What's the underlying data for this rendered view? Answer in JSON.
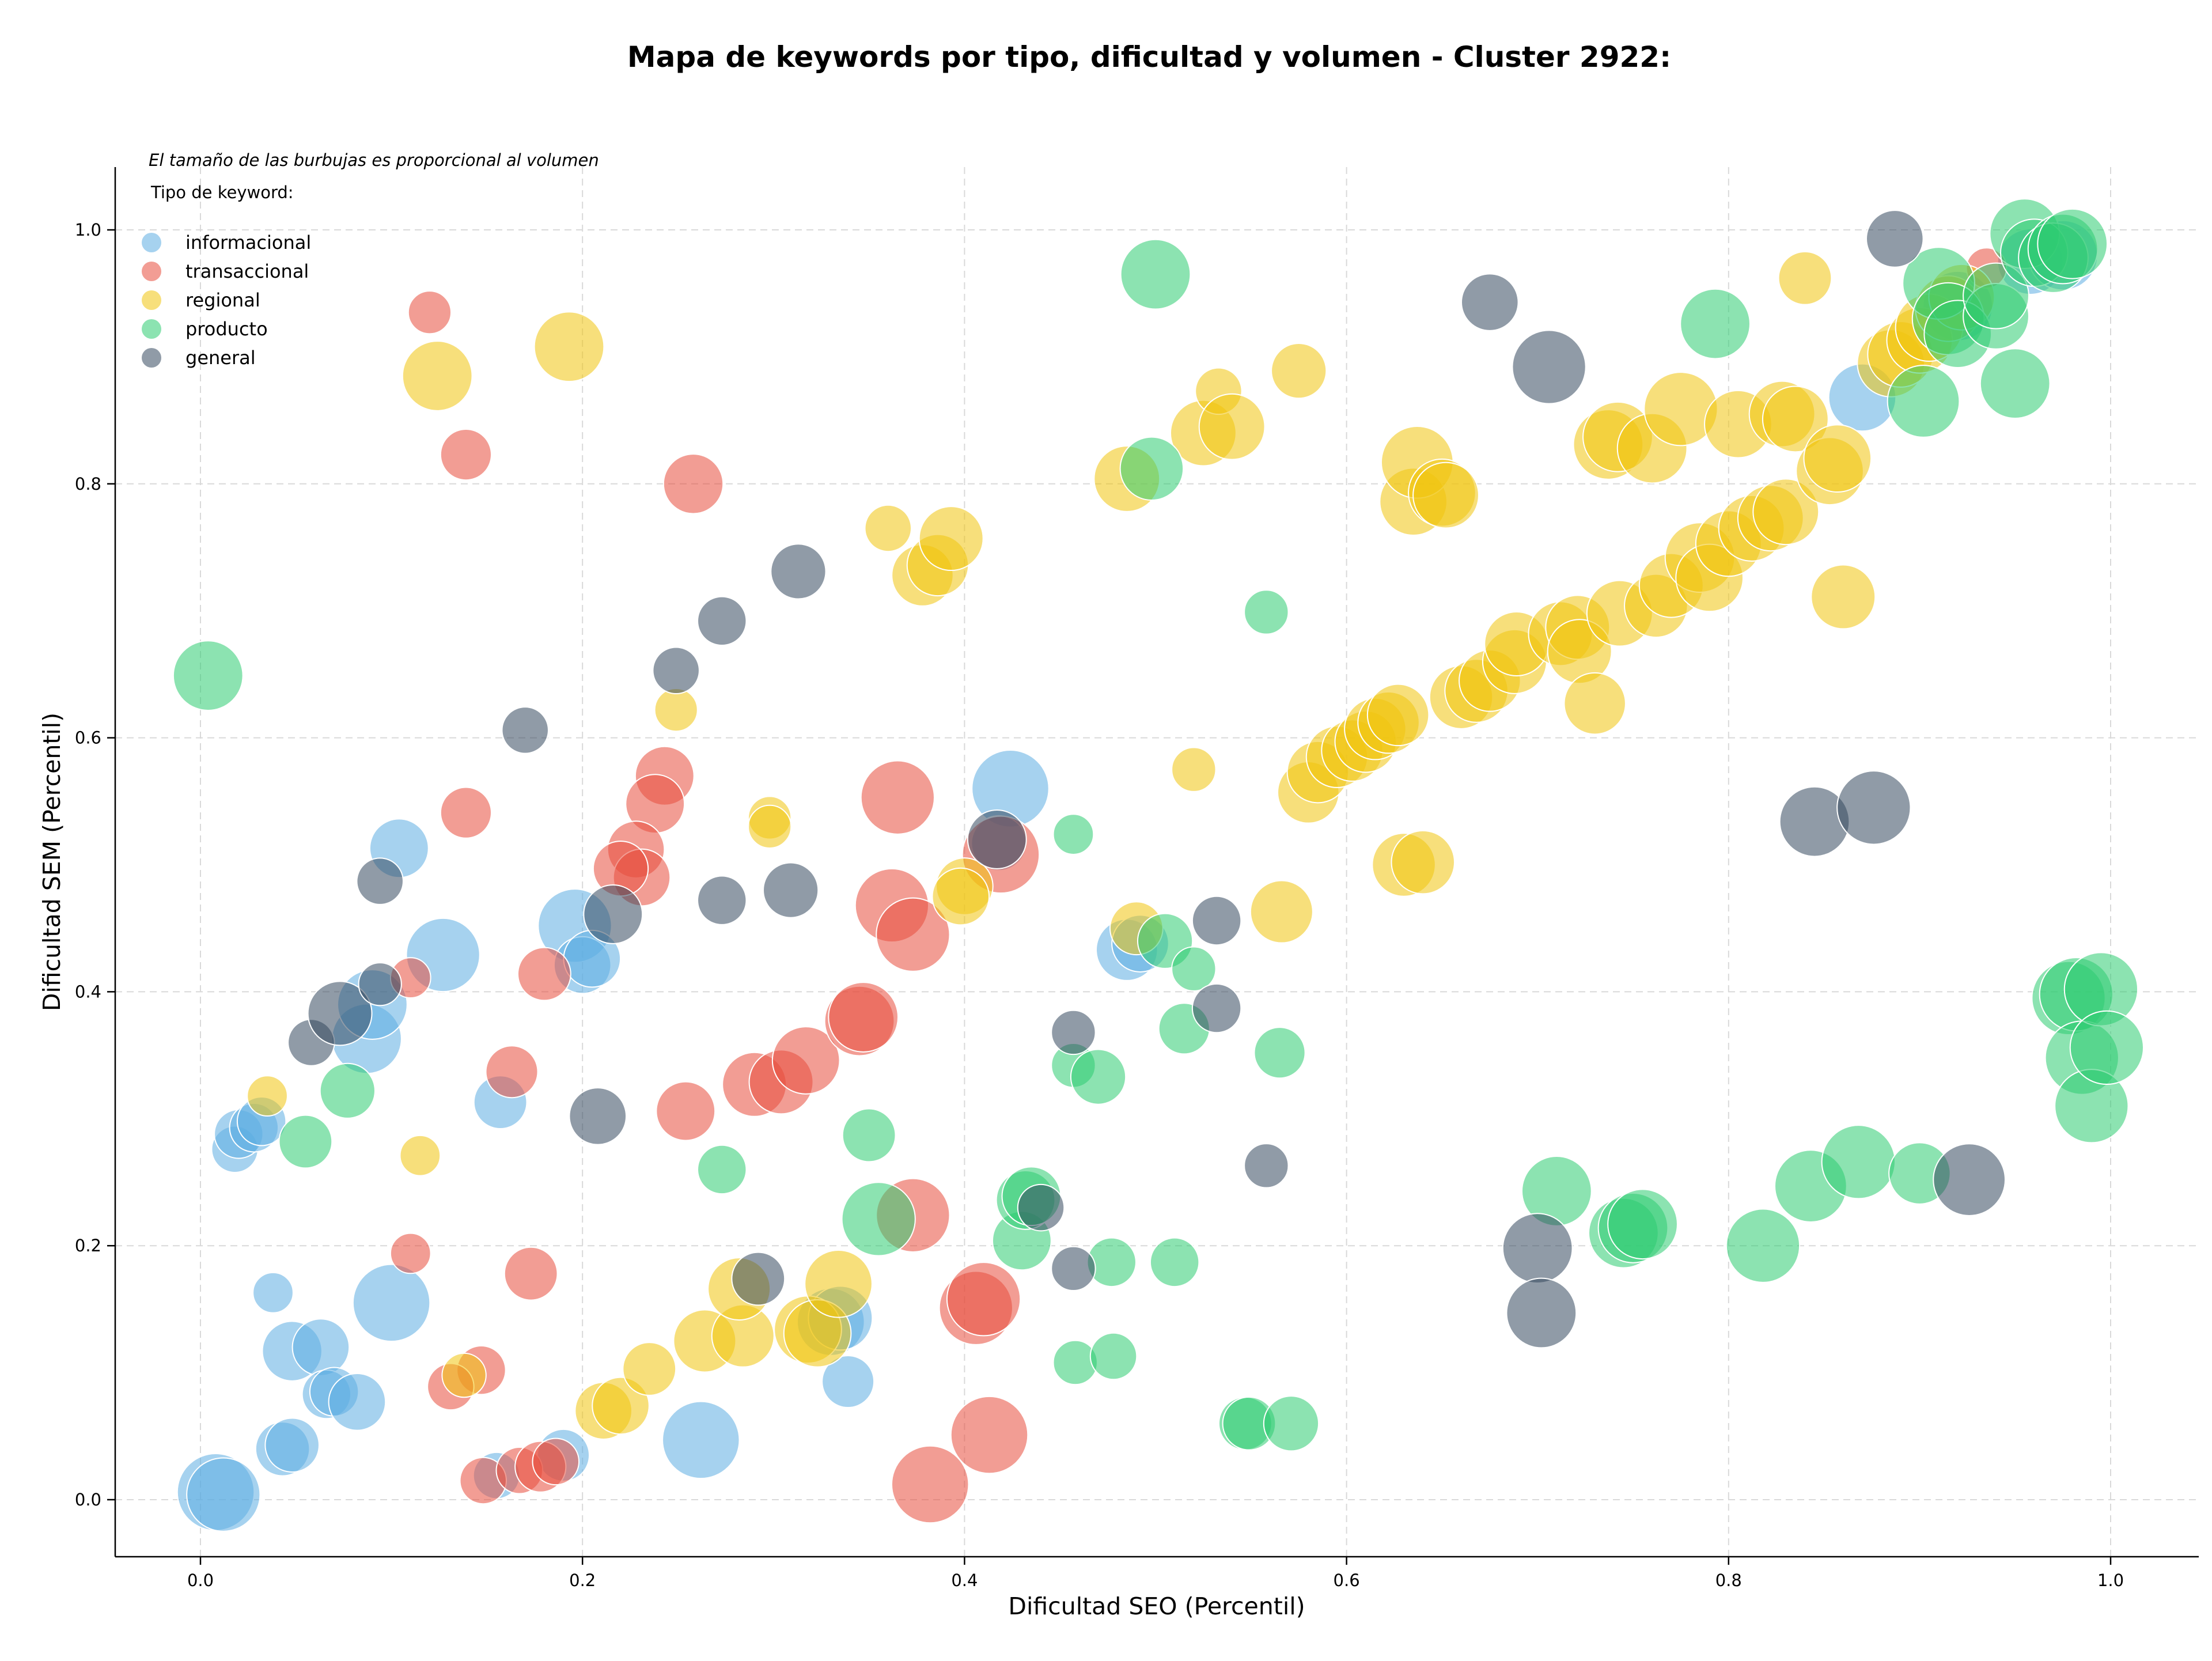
{
  "chart_data": {
    "type": "scatter",
    "title": "Mapa de keywords por tipo, dificultad y volumen - Cluster 2922:",
    "xlabel": "Dificultad SEO (Percentil)",
    "ylabel": "Dificultad SEM (Percentil)",
    "annotation": "El tamaño de las burbujas es proporcional al volumen",
    "legend_title": "Tipo de keyword:",
    "legend_position": "upper-left",
    "xlim": [
      -0.045,
      1.05
    ],
    "ylim": [
      -0.045,
      1.05
    ],
    "x_ticks": [
      "0.0",
      "0.2",
      "0.4",
      "0.6",
      "0.8",
      "1.0"
    ],
    "y_ticks": [
      "0.0",
      "0.2",
      "0.4",
      "0.6",
      "0.8",
      "1.0"
    ],
    "grid": true,
    "bubble_opacity": 0.55,
    "series": [
      {
        "name": "informacional",
        "color": "#5DADE2",
        "points": [
          [
            0.008,
            0.006,
            0.55
          ],
          [
            0.012,
            0.004,
            0.5
          ],
          [
            0.018,
            0.276,
            0.2
          ],
          [
            0.02,
            0.288,
            0.22
          ],
          [
            0.028,
            0.293,
            0.22
          ],
          [
            0.032,
            0.298,
            0.22
          ],
          [
            0.038,
            0.163,
            0.15
          ],
          [
            0.043,
            0.04,
            0.27
          ],
          [
            0.048,
            0.043,
            0.27
          ],
          [
            0.048,
            0.117,
            0.33
          ],
          [
            0.063,
            0.12,
            0.3
          ],
          [
            0.066,
            0.083,
            0.22
          ],
          [
            0.07,
            0.085,
            0.22
          ],
          [
            0.082,
            0.077,
            0.3
          ],
          [
            0.087,
            0.363,
            0.45
          ],
          [
            0.09,
            0.39,
            0.45
          ],
          [
            0.1,
            0.155,
            0.55
          ],
          [
            0.104,
            0.513,
            0.32
          ],
          [
            0.127,
            0.429,
            0.5
          ],
          [
            0.157,
            0.313,
            0.26
          ],
          [
            0.155,
            0.019,
            0.2
          ],
          [
            0.19,
            0.035,
            0.25
          ],
          [
            0.196,
            0.452,
            0.5
          ],
          [
            0.2,
            0.421,
            0.3
          ],
          [
            0.205,
            0.426,
            0.3
          ],
          [
            0.262,
            0.047,
            0.55
          ],
          [
            0.33,
            0.14,
            0.42
          ],
          [
            0.335,
            0.143,
            0.38
          ],
          [
            0.339,
            0.093,
            0.25
          ],
          [
            0.424,
            0.56,
            0.55
          ],
          [
            0.418,
            0.517,
            0.28
          ],
          [
            0.485,
            0.433,
            0.35
          ],
          [
            0.492,
            0.438,
            0.3
          ],
          [
            0.87,
            0.868,
            0.42
          ],
          [
            0.92,
            0.94,
            0.45
          ],
          [
            0.958,
            0.975,
            0.4
          ],
          [
            0.975,
            0.98,
            0.45
          ]
        ]
      },
      {
        "name": "transaccional",
        "color": "#E74C3C",
        "points": [
          [
            0.12,
            0.935,
            0.17
          ],
          [
            0.139,
            0.823,
            0.24
          ],
          [
            0.258,
            0.8,
            0.33
          ],
          [
            0.139,
            0.541,
            0.24
          ],
          [
            0.243,
            0.57,
            0.32
          ],
          [
            0.238,
            0.548,
            0.32
          ],
          [
            0.228,
            0.512,
            0.3
          ],
          [
            0.231,
            0.49,
            0.3
          ],
          [
            0.22,
            0.497,
            0.28
          ],
          [
            0.11,
            0.411,
            0.15
          ],
          [
            0.18,
            0.414,
            0.26
          ],
          [
            0.163,
            0.337,
            0.25
          ],
          [
            0.11,
            0.194,
            0.15
          ],
          [
            0.173,
            0.178,
            0.26
          ],
          [
            0.147,
            0.102,
            0.22
          ],
          [
            0.131,
            0.089,
            0.2
          ],
          [
            0.148,
            0.015,
            0.2
          ],
          [
            0.167,
            0.023,
            0.2
          ],
          [
            0.178,
            0.026,
            0.24
          ],
          [
            0.186,
            0.03,
            0.2
          ],
          [
            0.254,
            0.306,
            0.32
          ],
          [
            0.29,
            0.327,
            0.38
          ],
          [
            0.304,
            0.329,
            0.38
          ],
          [
            0.317,
            0.346,
            0.42
          ],
          [
            0.345,
            0.377,
            0.45
          ],
          [
            0.347,
            0.38,
            0.45
          ],
          [
            0.365,
            0.553,
            0.5
          ],
          [
            0.362,
            0.468,
            0.5
          ],
          [
            0.373,
            0.445,
            0.5
          ],
          [
            0.373,
            0.224,
            0.5
          ],
          [
            0.406,
            0.151,
            0.5
          ],
          [
            0.41,
            0.158,
            0.5
          ],
          [
            0.419,
            0.508,
            0.55
          ],
          [
            0.413,
            0.051,
            0.55
          ],
          [
            0.382,
            0.012,
            0.55
          ],
          [
            0.935,
            0.97,
            0.15
          ]
        ]
      },
      {
        "name": "regional",
        "color": "#F1C40F",
        "points": [
          [
            0.035,
            0.318,
            0.15
          ],
          [
            0.115,
            0.271,
            0.15
          ],
          [
            0.124,
            0.885,
            0.45
          ],
          [
            0.193,
            0.908,
            0.45
          ],
          [
            0.138,
            0.098,
            0.18
          ],
          [
            0.211,
            0.07,
            0.3
          ],
          [
            0.22,
            0.074,
            0.3
          ],
          [
            0.235,
            0.103,
            0.26
          ],
          [
            0.249,
            0.622,
            0.17
          ],
          [
            0.264,
            0.125,
            0.36
          ],
          [
            0.284,
            0.129,
            0.36
          ],
          [
            0.282,
            0.166,
            0.36
          ],
          [
            0.298,
            0.537,
            0.17
          ],
          [
            0.298,
            0.53,
            0.17
          ],
          [
            0.318,
            0.134,
            0.42
          ],
          [
            0.323,
            0.131,
            0.42
          ],
          [
            0.334,
            0.17,
            0.42
          ],
          [
            0.36,
            0.765,
            0.2
          ],
          [
            0.378,
            0.728,
            0.35
          ],
          [
            0.386,
            0.736,
            0.35
          ],
          [
            0.393,
            0.757,
            0.38
          ],
          [
            0.4,
            0.483,
            0.3
          ],
          [
            0.398,
            0.475,
            0.3
          ],
          [
            0.49,
            0.45,
            0.26
          ],
          [
            0.485,
            0.804,
            0.4
          ],
          [
            0.52,
            0.575,
            0.18
          ],
          [
            0.525,
            0.84,
            0.4
          ],
          [
            0.533,
            0.873,
            0.2
          ],
          [
            0.54,
            0.845,
            0.4
          ],
          [
            0.566,
            0.463,
            0.36
          ],
          [
            0.575,
            0.889,
            0.28
          ],
          [
            0.58,
            0.557,
            0.35
          ],
          [
            0.585,
            0.573,
            0.35
          ],
          [
            0.595,
            0.585,
            0.35
          ],
          [
            0.603,
            0.59,
            0.35
          ],
          [
            0.61,
            0.597,
            0.35
          ],
          [
            0.615,
            0.607,
            0.35
          ],
          [
            0.622,
            0.612,
            0.35
          ],
          [
            0.627,
            0.618,
            0.35
          ],
          [
            0.63,
            0.5,
            0.37
          ],
          [
            0.635,
            0.786,
            0.42
          ],
          [
            0.637,
            0.817,
            0.48
          ],
          [
            0.64,
            0.502,
            0.37
          ],
          [
            0.65,
            0.793,
            0.42
          ],
          [
            0.652,
            0.791,
            0.4
          ],
          [
            0.66,
            0.632,
            0.37
          ],
          [
            0.668,
            0.637,
            0.37
          ],
          [
            0.675,
            0.645,
            0.35
          ],
          [
            0.688,
            0.66,
            0.38
          ],
          [
            0.689,
            0.674,
            0.38
          ],
          [
            0.712,
            0.682,
            0.38
          ],
          [
            0.721,
            0.687,
            0.38
          ],
          [
            0.722,
            0.668,
            0.38
          ],
          [
            0.73,
            0.627,
            0.35
          ],
          [
            0.737,
            0.831,
            0.45
          ],
          [
            0.742,
            0.837,
            0.45
          ],
          [
            0.743,
            0.698,
            0.4
          ],
          [
            0.76,
            0.828,
            0.45
          ],
          [
            0.762,
            0.704,
            0.37
          ],
          [
            0.77,
            0.72,
            0.38
          ],
          [
            0.775,
            0.859,
            0.5
          ],
          [
            0.785,
            0.742,
            0.45
          ],
          [
            0.79,
            0.726,
            0.42
          ],
          [
            0.8,
            0.753,
            0.4
          ],
          [
            0.805,
            0.847,
            0.42
          ],
          [
            0.812,
            0.765,
            0.4
          ],
          [
            0.822,
            0.773,
            0.4
          ],
          [
            0.83,
            0.778,
            0.4
          ],
          [
            0.828,
            0.855,
            0.4
          ],
          [
            0.835,
            0.851,
            0.4
          ],
          [
            0.84,
            0.962,
            0.26
          ],
          [
            0.853,
            0.81,
            0.42
          ],
          [
            0.857,
            0.82,
            0.42
          ],
          [
            0.86,
            0.711,
            0.38
          ],
          [
            0.885,
            0.895,
            0.42
          ],
          [
            0.89,
            0.902,
            0.4
          ],
          [
            0.9,
            0.913,
            0.4
          ],
          [
            0.905,
            0.923,
            0.42
          ],
          [
            0.915,
            0.938,
            0.4
          ],
          [
            0.922,
            0.947,
            0.4
          ]
        ]
      },
      {
        "name": "producto",
        "color": "#2ECC71",
        "points": [
          [
            0.004,
            0.649,
            0.45
          ],
          [
            0.055,
            0.282,
            0.26
          ],
          [
            0.077,
            0.322,
            0.28
          ],
          [
            0.273,
            0.26,
            0.22
          ],
          [
            0.35,
            0.287,
            0.26
          ],
          [
            0.355,
            0.221,
            0.5
          ],
          [
            0.43,
            0.204,
            0.32
          ],
          [
            0.432,
            0.236,
            0.32
          ],
          [
            0.435,
            0.239,
            0.32
          ],
          [
            0.457,
            0.524,
            0.15
          ],
          [
            0.457,
            0.342,
            0.18
          ],
          [
            0.458,
            0.108,
            0.18
          ],
          [
            0.47,
            0.333,
            0.28
          ],
          [
            0.477,
            0.187,
            0.22
          ],
          [
            0.478,
            0.113,
            0.2
          ],
          [
            0.498,
            0.812,
            0.37
          ],
          [
            0.5,
            0.965,
            0.45
          ],
          [
            0.505,
            0.44,
            0.28
          ],
          [
            0.51,
            0.187,
            0.22
          ],
          [
            0.515,
            0.371,
            0.24
          ],
          [
            0.52,
            0.418,
            0.18
          ],
          [
            0.547,
            0.06,
            0.26
          ],
          [
            0.549,
            0.06,
            0.26
          ],
          [
            0.558,
            0.699,
            0.18
          ],
          [
            0.565,
            0.352,
            0.24
          ],
          [
            0.571,
            0.06,
            0.28
          ],
          [
            0.71,
            0.243,
            0.45
          ],
          [
            0.745,
            0.21,
            0.45
          ],
          [
            0.75,
            0.214,
            0.45
          ],
          [
            0.755,
            0.217,
            0.45
          ],
          [
            0.793,
            0.926,
            0.45
          ],
          [
            0.818,
            0.2,
            0.5
          ],
          [
            0.843,
            0.247,
            0.48
          ],
          [
            0.868,
            0.266,
            0.5
          ],
          [
            0.9,
            0.257,
            0.35
          ],
          [
            0.902,
            0.865,
            0.48
          ],
          [
            0.91,
            0.958,
            0.48
          ],
          [
            0.915,
            0.93,
            0.48
          ],
          [
            0.92,
            0.918,
            0.42
          ],
          [
            0.94,
            0.932,
            0.4
          ],
          [
            0.94,
            0.948,
            0.4
          ],
          [
            0.95,
            0.879,
            0.45
          ],
          [
            0.955,
            0.997,
            0.45
          ],
          [
            0.96,
            0.982,
            0.42
          ],
          [
            0.97,
            0.978,
            0.45
          ],
          [
            0.975,
            0.985,
            0.45
          ],
          [
            0.98,
            0.989,
            0.45
          ],
          [
            0.978,
            0.395,
            0.5
          ],
          [
            0.982,
            0.398,
            0.5
          ],
          [
            0.985,
            0.348,
            0.5
          ],
          [
            0.99,
            0.31,
            0.5
          ],
          [
            0.995,
            0.402,
            0.5
          ],
          [
            0.998,
            0.356,
            0.5
          ]
        ]
      },
      {
        "name": "general",
        "color": "#34495E",
        "points": [
          [
            0.058,
            0.36,
            0.2
          ],
          [
            0.073,
            0.383,
            0.38
          ],
          [
            0.094,
            0.406,
            0.17
          ],
          [
            0.094,
            0.487,
            0.2
          ],
          [
            0.17,
            0.606,
            0.2
          ],
          [
            0.208,
            0.302,
            0.3
          ],
          [
            0.216,
            0.461,
            0.32
          ],
          [
            0.249,
            0.653,
            0.2
          ],
          [
            0.273,
            0.692,
            0.22
          ],
          [
            0.273,
            0.472,
            0.22
          ],
          [
            0.292,
            0.174,
            0.26
          ],
          [
            0.309,
            0.48,
            0.28
          ],
          [
            0.313,
            0.731,
            0.28
          ],
          [
            0.417,
            0.52,
            0.32
          ],
          [
            0.44,
            0.23,
            0.2
          ],
          [
            0.457,
            0.368,
            0.18
          ],
          [
            0.457,
            0.182,
            0.18
          ],
          [
            0.532,
            0.456,
            0.22
          ],
          [
            0.532,
            0.387,
            0.22
          ],
          [
            0.558,
            0.263,
            0.18
          ],
          [
            0.675,
            0.943,
            0.3
          ],
          [
            0.7,
            0.198,
            0.45
          ],
          [
            0.702,
            0.147,
            0.45
          ],
          [
            0.706,
            0.892,
            0.5
          ],
          [
            0.845,
            0.534,
            0.45
          ],
          [
            0.876,
            0.545,
            0.5
          ],
          [
            0.887,
            0.993,
            0.3
          ],
          [
            0.926,
            0.252,
            0.48
          ]
        ]
      }
    ]
  }
}
